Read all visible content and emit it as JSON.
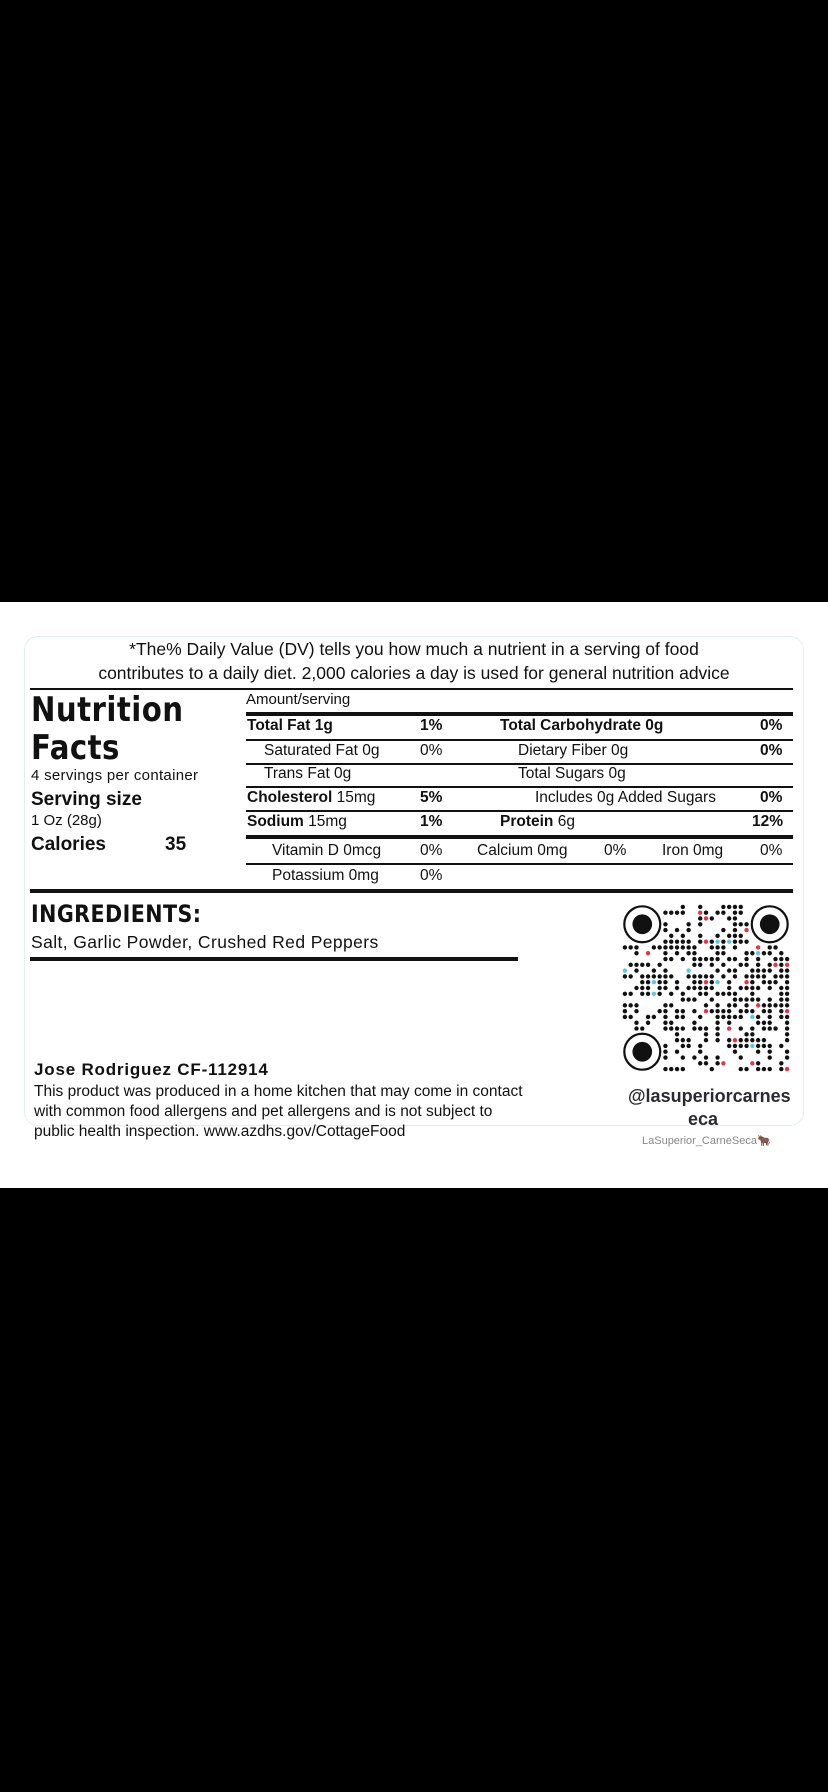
{
  "disclaimer": {
    "line1": "*The% Daily Value (DV) tells you how much a nutrient in a serving of food",
    "line2": "contributes to a daily diet. 2,000 calories a day is used for general nutrition advice"
  },
  "facts": {
    "title1": "Nutrition",
    "title2": "Facts",
    "servings": "4 servings per container",
    "serving_size_label": "Serving size",
    "serving_size": "1 Oz (28g)",
    "calories_label": "Calories",
    "calories": "35",
    "amount_header": "Amount/serving"
  },
  "table": {
    "total_fat": {
      "label": "Total Fat 1g",
      "dv": "1%"
    },
    "sat_fat": {
      "label": "Saturated Fat 0g",
      "dv": "0%"
    },
    "trans_fat": {
      "label": "Trans Fat 0g"
    },
    "cholesterol": {
      "label": "Cholesterol",
      "amount": " 15mg",
      "dv": "5%"
    },
    "sodium": {
      "label": "Sodium",
      "amount": " 15mg",
      "dv": "1%"
    },
    "total_carb": {
      "label": "Total Carbohydrate 0g",
      "dv": "0%"
    },
    "fiber": {
      "label": "Dietary Fiber 0g",
      "dv": "0%"
    },
    "sugars": {
      "label": "Total Sugars 0g"
    },
    "added_sugars": {
      "label": "Includes 0g Added Sugars",
      "dv": "0%"
    },
    "protein": {
      "label": "Protein",
      "amount": " 6g",
      "dv": "12%"
    },
    "vitamin_d": {
      "label": "Vitamin D 0mcg",
      "dv": "0%"
    },
    "calcium": {
      "label": "Calcium 0mg",
      "dv": "0%"
    },
    "iron": {
      "label": "Iron 0mg",
      "dv": "0%"
    },
    "potassium": {
      "label": "Potassium 0mg",
      "dv": "0%"
    }
  },
  "ingredients": {
    "heading": "INGREDIENTS:",
    "text": "Salt, Garlic Powder, Crushed Red Peppers"
  },
  "producer": {
    "name": "Jose Rodriguez CF-112914",
    "line1": "This product was produced in a home kitchen that may come in contact",
    "line2": "with common food allergens and pet allergens and is not subject to",
    "line3": "public health inspection. www.azdhs.gov/CottageFood"
  },
  "social": {
    "handle_line1": "@lasuperiorcarnes",
    "handle_line2": "eca",
    "username": "LaSuperior_CarneSeca",
    "emoji": "🐂",
    "qr_icon": "qr-code-icon",
    "colors": {
      "accent_red": "#e8334a",
      "accent_cyan": "#5cc8e8"
    }
  }
}
